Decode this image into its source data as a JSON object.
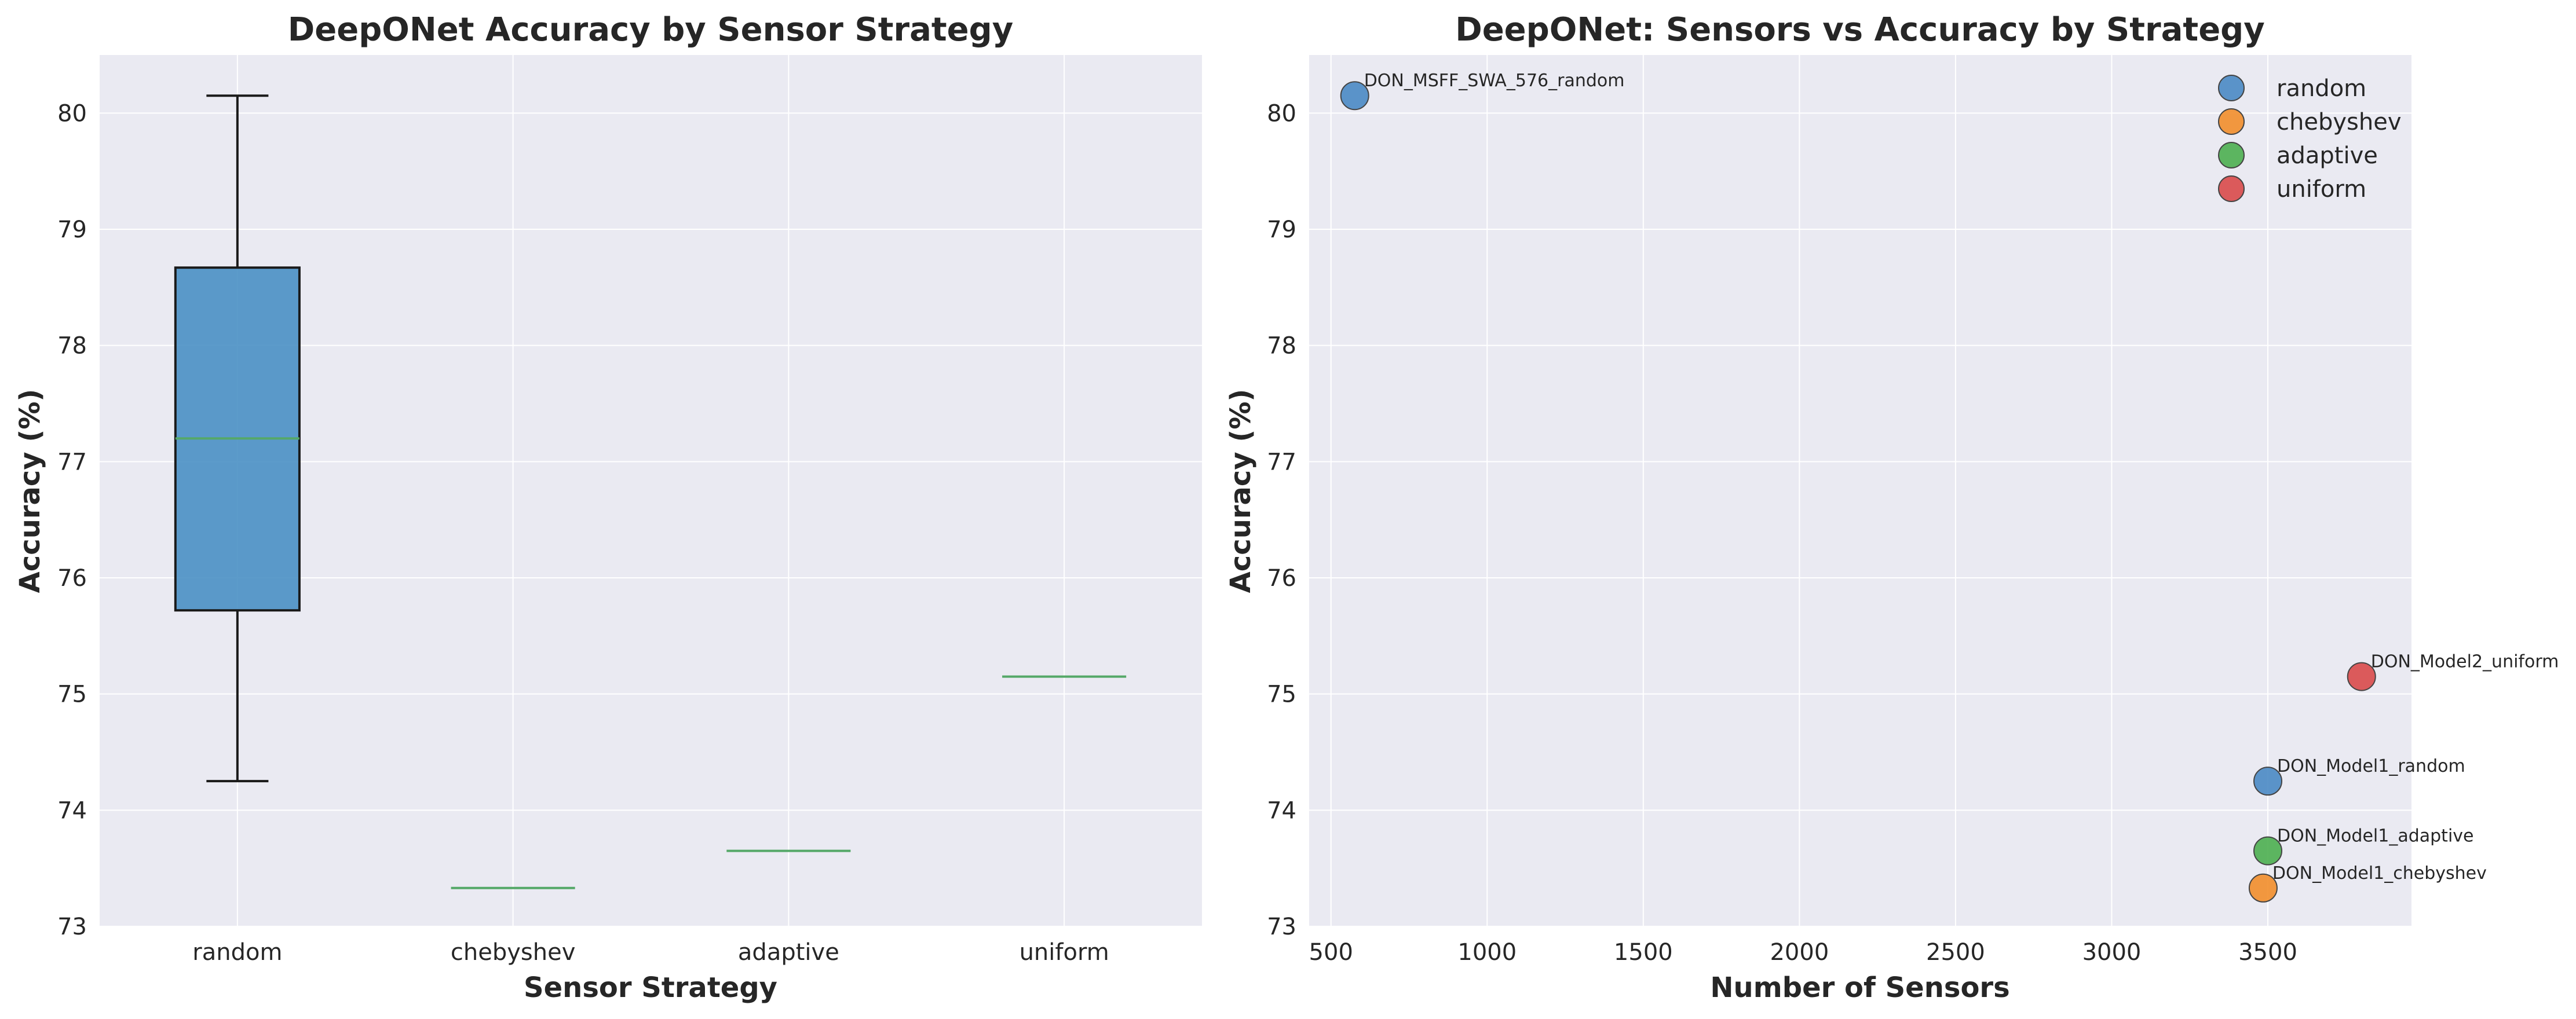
{
  "chart_data": [
    {
      "type": "box",
      "title": "DeepONet Accuracy by Sensor Strategy",
      "xlabel": "Sensor Strategy",
      "ylabel": "Accuracy (%)",
      "categories": [
        "random",
        "chebyshev",
        "adaptive",
        "uniform"
      ],
      "boxes": [
        {
          "category": "random",
          "min": 74.25,
          "q1": 75.72,
          "median": 77.2,
          "q3": 78.67,
          "max": 80.15
        },
        {
          "category": "chebyshev",
          "min": 73.33,
          "q1": 73.33,
          "median": 73.33,
          "q3": 73.33,
          "max": 73.33
        },
        {
          "category": "adaptive",
          "min": 73.65,
          "q1": 73.65,
          "median": 73.65,
          "q3": 73.65,
          "max": 73.65
        },
        {
          "category": "uniform",
          "min": 75.15,
          "q1": 75.15,
          "median": 75.15,
          "q3": 75.15,
          "max": 75.15
        }
      ],
      "ylim": [
        73,
        80.5
      ],
      "yticks": [
        73,
        74,
        75,
        76,
        77,
        78,
        79,
        80
      ],
      "grid": true,
      "colors": {
        "box_fill": "#4a90c4",
        "box_edge": "#1a1a1a",
        "median": "#55a868",
        "background": "#eaeaf2",
        "grid": "#ffffff"
      }
    },
    {
      "type": "scatter",
      "title": "DeepONet: Sensors vs Accuracy by Strategy",
      "xlabel": "Number of Sensors",
      "ylabel": "Accuracy (%)",
      "xlim": [
        430,
        3960
      ],
      "ylim": [
        73,
        80.5
      ],
      "xticks": [
        500,
        1000,
        1500,
        2000,
        2500,
        3000,
        3500
      ],
      "yticks": [
        73,
        74,
        75,
        76,
        77,
        78,
        79,
        80
      ],
      "grid": true,
      "legend_position": "top-right",
      "series": [
        {
          "name": "random",
          "color": "#4a8ac4",
          "points": [
            {
              "x": 576,
              "y": 80.15,
              "label": "DON_MSFF_SWA_576_random"
            },
            {
              "x": 3500,
              "y": 74.25,
              "label": "DON_Model1_random"
            }
          ]
        },
        {
          "name": "chebyshev",
          "color": "#f28e2b",
          "points": [
            {
              "x": 3485,
              "y": 73.33,
              "label": "DON_Model1_chebyshev"
            }
          ]
        },
        {
          "name": "adaptive",
          "color": "#4caf50",
          "points": [
            {
              "x": 3500,
              "y": 73.65,
              "label": "DON_Model1_adaptive"
            }
          ]
        },
        {
          "name": "uniform",
          "color": "#d94a4a",
          "points": [
            {
              "x": 3800,
              "y": 75.15,
              "label": "DON_Model2_uniform"
            }
          ]
        }
      ],
      "colors": {
        "background": "#eaeaf2",
        "grid": "#ffffff",
        "marker_edge": "#444444"
      }
    }
  ]
}
